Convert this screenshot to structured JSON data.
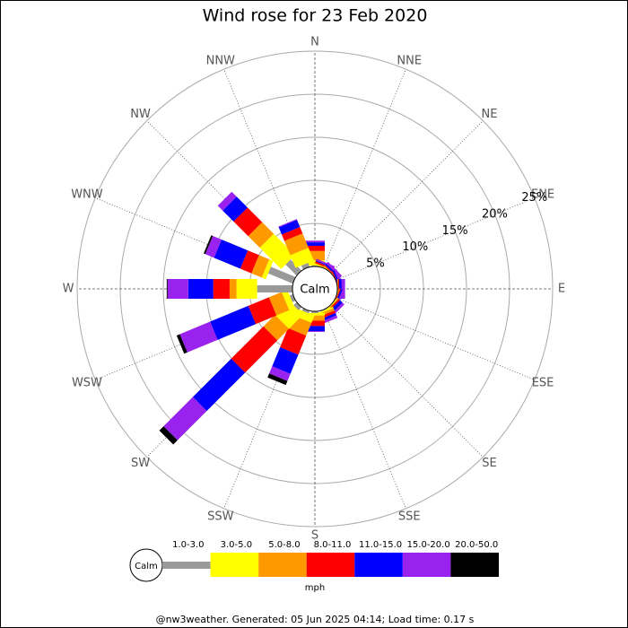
{
  "chart_data": {
    "type": "windrose",
    "title": "Wind rose for 23 Feb 2020",
    "directions": [
      "N",
      "NNE",
      "NE",
      "ENE",
      "E",
      "ESE",
      "SE",
      "SSE",
      "S",
      "SSW",
      "SW",
      "WSW",
      "W",
      "WNW",
      "NW",
      "NNW"
    ],
    "rlim": [
      0,
      25
    ],
    "rticks": [
      {
        "value": 5,
        "label": "5%"
      },
      {
        "value": 10,
        "label": "10%"
      },
      {
        "value": 15,
        "label": "15%"
      },
      {
        "value": 20,
        "label": "20%"
      },
      {
        "value": 25,
        "label": "25%"
      }
    ],
    "calm_label": "Calm",
    "unit": "mph",
    "series": [
      {
        "name": "1.0-3.0",
        "color": "#999999",
        "values": [
          0.1,
          0,
          0,
          0,
          0,
          0,
          0,
          0.1,
          0.2,
          0.3,
          0.5,
          0.4,
          4.1,
          3.1,
          1.8,
          0.5
        ]
      },
      {
        "name": "3.0-5.0",
        "color": "#ffff00",
        "values": [
          0.6,
          0.1,
          0,
          0,
          0,
          0,
          0.1,
          0.2,
          0.3,
          0.9,
          2.3,
          0.7,
          2.4,
          0.5,
          3.5,
          1.6
        ]
      },
      {
        "name": "5.0-8.0",
        "color": "#ff9900",
        "values": [
          1.1,
          0.1,
          0.1,
          0,
          0.1,
          0.1,
          0.1,
          0.3,
          0.6,
          1.6,
          1.9,
          1.6,
          0.8,
          1.3,
          1.9,
          1.8
        ]
      },
      {
        "name": "8.0-11.0",
        "color": "#ff0000",
        "values": [
          0.6,
          0.2,
          0.1,
          0.1,
          0.1,
          0.1,
          0.2,
          0.3,
          0.6,
          2.4,
          5.3,
          2.6,
          1.9,
          1.4,
          2.4,
          0.8
        ]
      },
      {
        "name": "11.0-15.0",
        "color": "#0000ff",
        "values": [
          0.4,
          0.1,
          0.2,
          0.2,
          0.3,
          0.2,
          0.4,
          0.3,
          0.6,
          2.4,
          6.3,
          4.8,
          2.9,
          3.3,
          1.8,
          0.9
        ]
      },
      {
        "name": "15.0-20.0",
        "color": "#9922ee",
        "values": [
          0.2,
          0.2,
          0.3,
          0.3,
          0.4,
          0.2,
          0.3,
          0.3,
          0.1,
          0.9,
          4.8,
          3.8,
          2.4,
          1.1,
          0.8,
          0.1
        ]
      },
      {
        "name": "20.0-50.0",
        "color": "#000000",
        "values": [
          0,
          0,
          0,
          0,
          0,
          0,
          0,
          0,
          0,
          0.5,
          0.7,
          0.4,
          0.1,
          0.2,
          0,
          0
        ]
      }
    ],
    "footer": "@nw3weather. Generated: 05 Jun 2025 04:14; Load time: 0.17 s"
  }
}
